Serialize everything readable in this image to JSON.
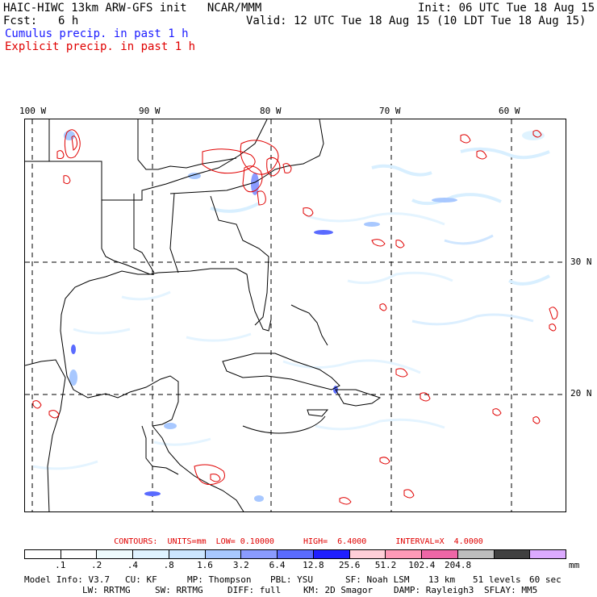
{
  "header": {
    "title": "HAIC-HIWC 13km ARW-GFS init   NCAR/MMM",
    "init": "Init: 06 UTC Tue 18 Aug 15",
    "fcst_label": "Fcst:",
    "fcst_value": "6 h",
    "valid": "Valid: 12 UTC Tue 18 Aug 15 (10 LDT Tue 18 Aug 15)",
    "cumulus_legend": "Cumulus precip. in past 1 h",
    "explicit_legend": "Explicit precip. in past 1 h"
  },
  "map": {
    "lon_labels": [
      "100 W",
      "90 W",
      "80 W",
      "70 W",
      "60 W"
    ],
    "lat_labels": [
      "30 N",
      "20 N"
    ]
  },
  "contours": {
    "text": "CONTOURS:  UNITS=mm  LOW= 0.10000      HIGH=  6.4000      INTERVAL=X  4.0000"
  },
  "colorbar": {
    "colors": [
      "#ffffff",
      "#ffffff",
      "#eefbfd",
      "#dff3ff",
      "#cce6ff",
      "#a8c8ff",
      "#8a9bff",
      "#5a6bff",
      "#1f1fff",
      "#ffcfd8",
      "#ff9ab8",
      "#ee66a6",
      "#bdbdbd",
      "#404040",
      "#dcaaff"
    ],
    "ticks": [
      ".1",
      ".2",
      ".4",
      ".8",
      "1.6",
      "3.2",
      "6.4",
      "12.8",
      "25.6",
      "51.2",
      "102.4",
      "204.8"
    ],
    "unit": "mm"
  },
  "model_info": {
    "line1": [
      "Model Info: V3.7",
      "CU: KF",
      "MP: Thompson",
      "PBL: YSU",
      "SF: Noah LSM",
      "13 km",
      "51 levels",
      "60 sec"
    ],
    "line2": [
      "LW: RRTMG",
      "SW: RRTMG",
      "DIFF: full",
      "KM: 2D Smagor",
      "DAMP: Rayleigh3",
      "SFLAY: MM5"
    ]
  }
}
